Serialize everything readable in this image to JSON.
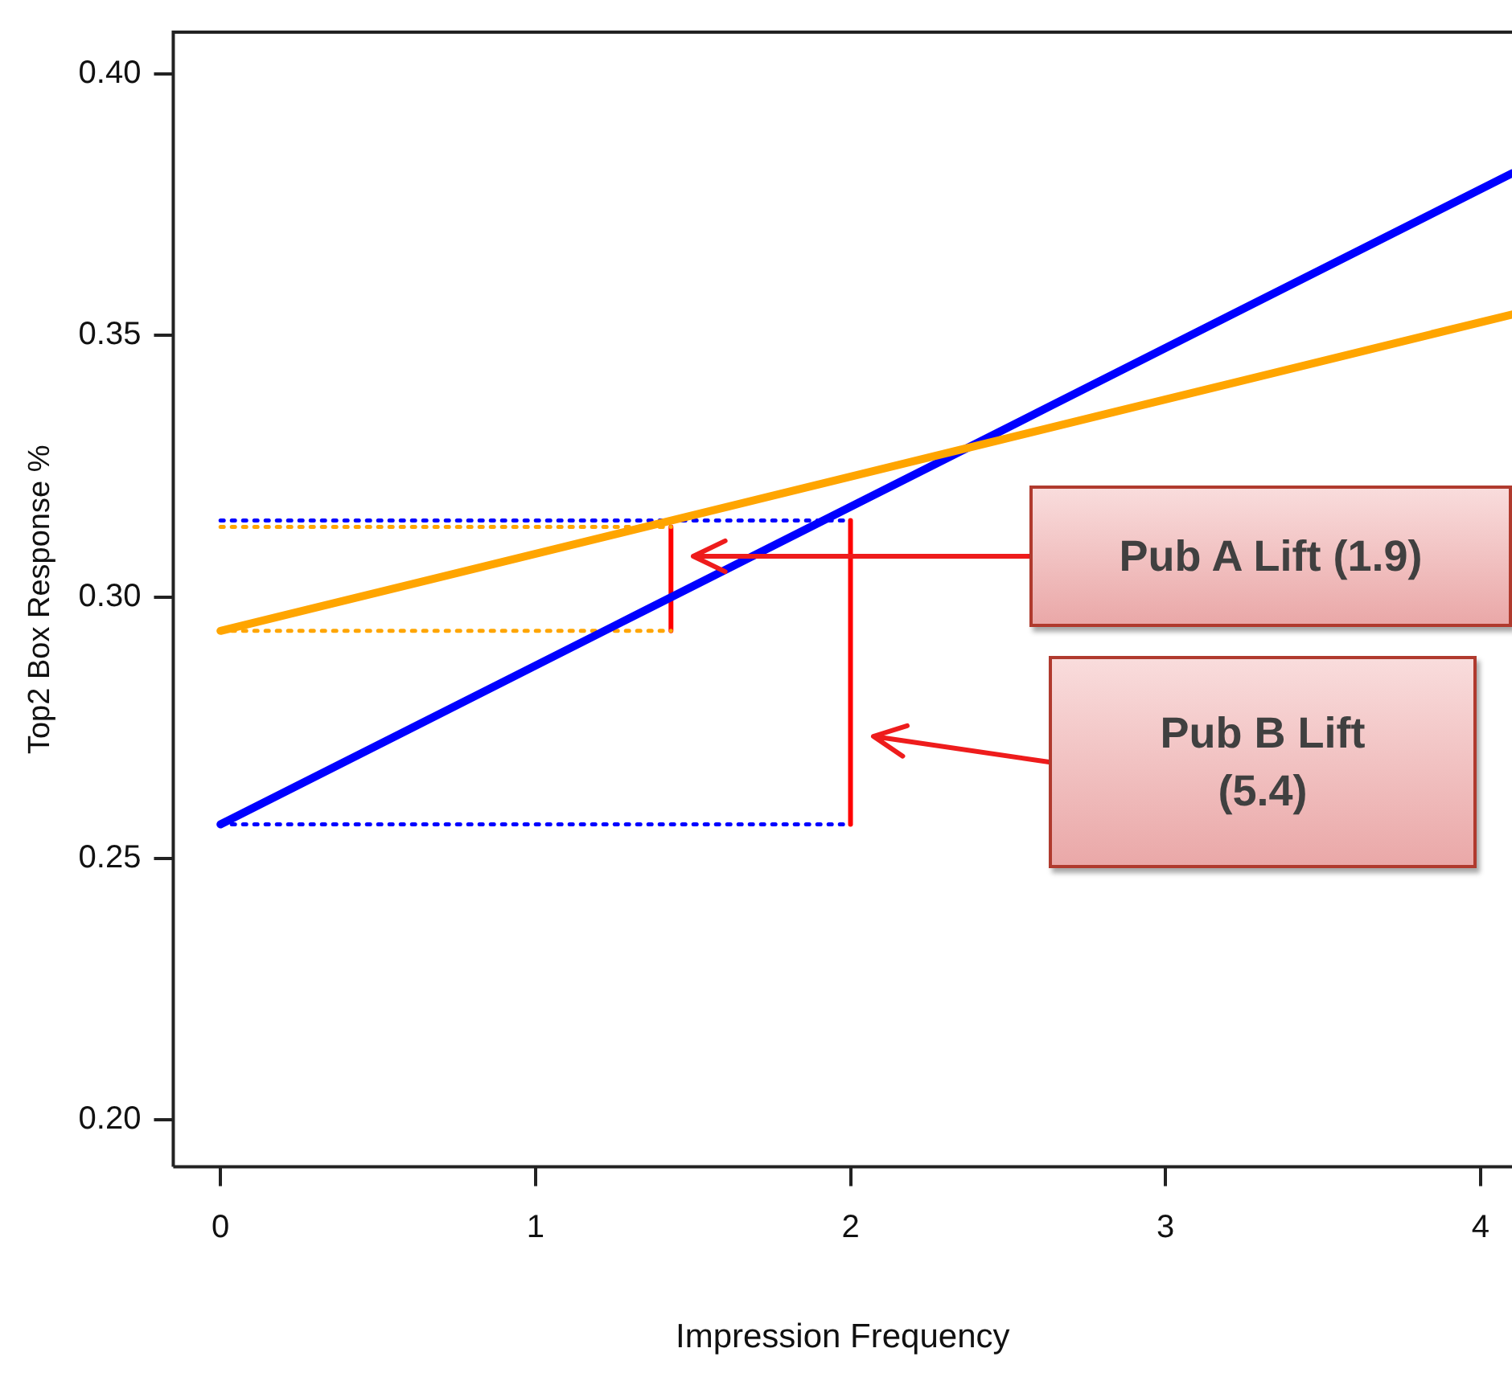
{
  "chart_data": {
    "type": "line",
    "xlabel": "Impression Frequency",
    "ylabel": "Top2 Box Response %",
    "xlim": [
      -0.15,
      4.1
    ],
    "xticks": [
      0,
      1,
      2,
      3,
      4
    ],
    "ylim": [
      0.191,
      0.408
    ],
    "yticks": [
      {
        "value": 0.2,
        "label": "0.20"
      },
      {
        "value": 0.25,
        "label": "0.25"
      },
      {
        "value": 0.3,
        "label": "0.30"
      },
      {
        "value": 0.35,
        "label": "0.35"
      },
      {
        "value": 0.4,
        "label": "0.40"
      }
    ],
    "grid": false,
    "legend": false,
    "marker": "none",
    "series": [
      {
        "color": "#ffa500",
        "x": [
          0,
          4.1
        ],
        "values": [
          0.2935,
          0.354
        ]
      },
      {
        "color": "#0000ff",
        "x": [
          0,
          4.1
        ],
        "values": [
          0.2565,
          0.381
        ]
      },
      {
        "color": "#ffa500",
        "line_style": "dotted",
        "x": [
          0,
          1.43
        ],
        "values": [
          0.2935,
          0.2935
        ]
      },
      {
        "color": "#ffa500",
        "line_style": "dotted",
        "x": [
          0,
          1.43
        ],
        "values": [
          0.3134,
          0.3134
        ]
      },
      {
        "color": "#0000ff",
        "line_style": "dotted",
        "x": [
          0,
          2
        ],
        "values": [
          0.3146,
          0.3146
        ]
      },
      {
        "color": "#0000ff",
        "line_style": "dotted",
        "x": [
          0,
          2
        ],
        "values": [
          0.2565,
          0.2565
        ]
      },
      {
        "color": "#ff0000",
        "x": [
          1.43,
          1.43
        ],
        "values": [
          0.2935,
          0.3134
        ]
      },
      {
        "color": "#ff0000",
        "x": [
          2,
          2
        ],
        "values": [
          0.2565,
          0.3146
        ]
      }
    ],
    "annotations": [
      "Pub A Lift (1.9)",
      "Pub B Lift\n(5.4)"
    ]
  }
}
